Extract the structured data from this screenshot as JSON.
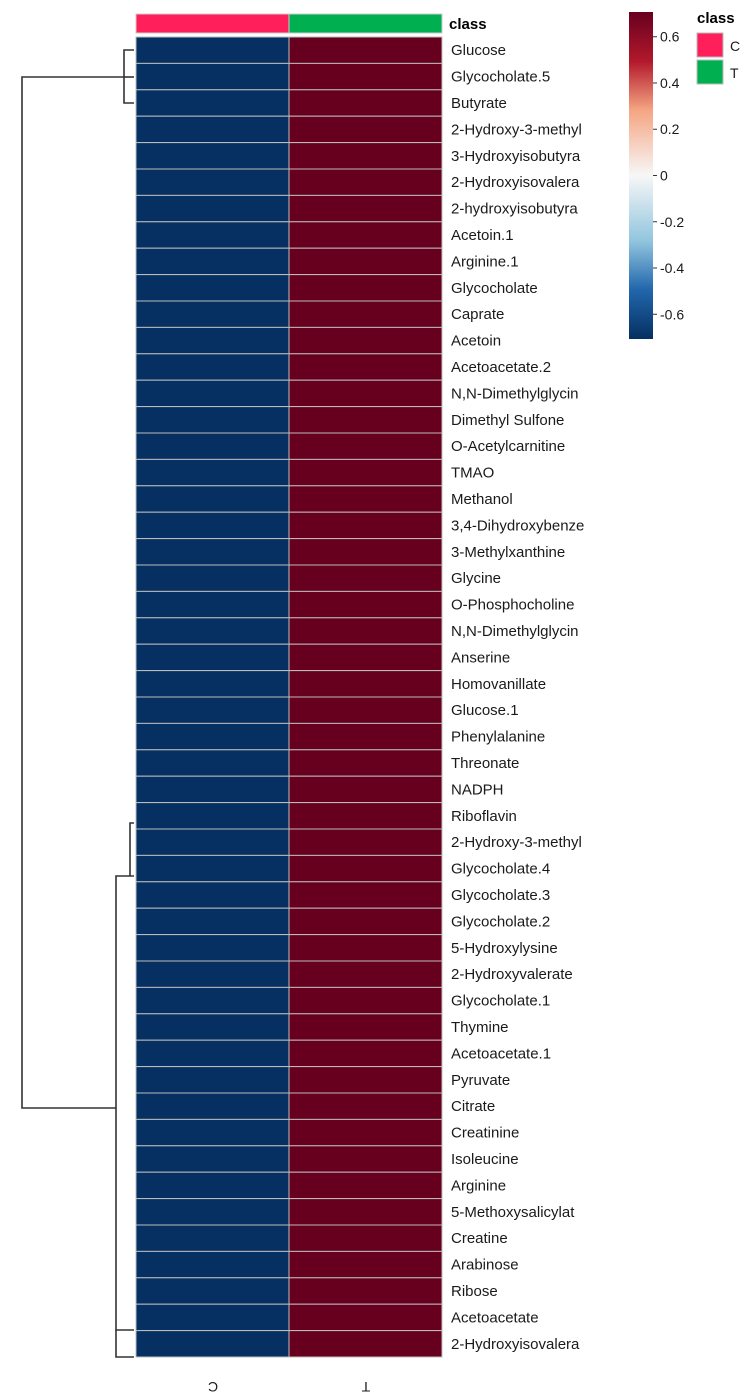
{
  "chart_data": {
    "type": "heatmap",
    "columns": [
      "C",
      "T"
    ],
    "column_annotation": {
      "title": "class",
      "values": [
        "C",
        "T"
      ],
      "colors": {
        "C": "#ff1f5a",
        "T": "#00b050"
      }
    },
    "rows": [
      "Glucose",
      "Glycocholate.5",
      "Butyrate",
      "2-Hydroxy-3-methyl",
      "3-Hydroxyisobutyra",
      "2-Hydroxyisovalera",
      "2-hydroxyisobutyra",
      "Acetoin.1",
      "Arginine.1",
      "Glycocholate",
      "Caprate",
      "Acetoin",
      "Acetoacetate.2",
      "N,N-Dimethylglycin",
      "Dimethyl Sulfone",
      "O-Acetylcarnitine",
      "TMAO",
      "Methanol",
      "3,4-Dihydroxybenze",
      "3-Methylxanthine",
      "Glycine",
      "O-Phosphocholine",
      "N,N-Dimethylglycin",
      "Anserine",
      "Homovanillate",
      "Glucose.1",
      "Phenylalanine",
      "Threonate",
      "NADPH",
      "Riboflavin",
      "2-Hydroxy-3-methyl",
      "Glycocholate.4",
      "Glycocholate.3",
      "Glycocholate.2",
      "5-Hydroxylysine",
      "2-Hydroxyvalerate",
      "Glycocholate.1",
      "Thymine",
      "Acetoacetate.1",
      "Pyruvate",
      "Citrate",
      "Creatinine",
      "Isoleucine",
      "Arginine",
      "5-Methoxysalicylat",
      "Creatine",
      "Arabinose",
      "Ribose",
      "Acetoacetate",
      "2-Hydroxyisovalera"
    ],
    "values_by_column": {
      "C": -0.707,
      "T": 0.707
    },
    "colorbar": {
      "ticks": [
        "0.6",
        "0.4",
        "0.2",
        "0",
        "-0.2",
        "-0.4",
        "-0.6"
      ],
      "tick_values": [
        0.6,
        0.4,
        0.2,
        0,
        -0.2,
        -0.4,
        -0.6
      ],
      "range": [
        -0.707,
        0.707
      ],
      "low_color": "#053061",
      "mid_color": "#f7f7f7",
      "high_color": "#67001f"
    },
    "legend": {
      "title": "class",
      "entries": [
        {
          "label": "C",
          "color": "#ff1f5a"
        },
        {
          "label": "T",
          "color": "#00b050"
        }
      ]
    },
    "row_dendrogram": true
  }
}
